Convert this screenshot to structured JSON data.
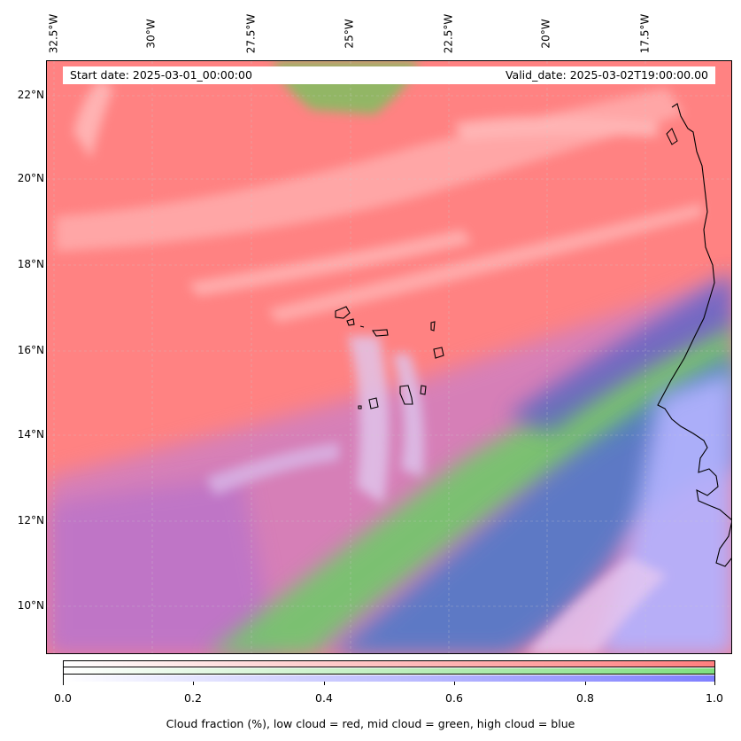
{
  "map": {
    "start_date": "Start date: 2025-03-01_00:00:00",
    "valid_date": "Valid_date: 2025-03-02T19:00:00.00",
    "lon_labels": [
      "32.5°W",
      "30°W",
      "27.5°W",
      "25°W",
      "22.5°W",
      "20°W",
      "17.5°W"
    ],
    "lat_labels": [
      "22°N",
      "20°N",
      "18°N",
      "16°N",
      "14°N",
      "12°N",
      "10°N"
    ],
    "colors": {
      "low_cloud": "#ff7f7f",
      "mid_cloud": "#7fe07f",
      "high_cloud": "#7f7fff"
    }
  },
  "colorbar": {
    "ticks": [
      "0.0",
      "0.2",
      "0.4",
      "0.6",
      "0.8",
      "1.0"
    ],
    "title": "Cloud fraction (%), low cloud = red, mid cloud = green, high cloud = blue"
  }
}
